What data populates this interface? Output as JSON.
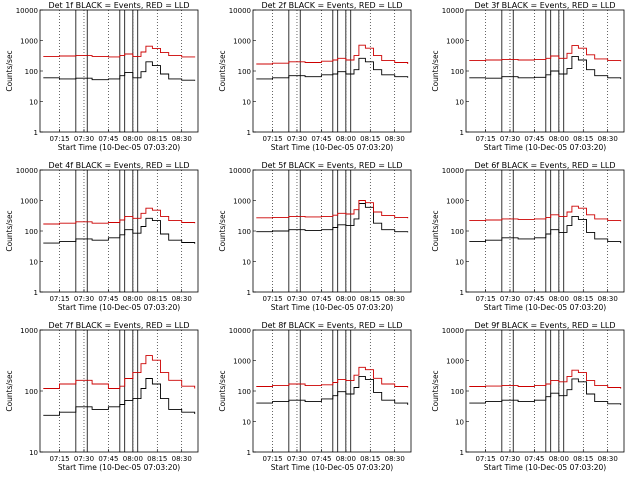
{
  "common": {
    "xlabel": "Start Time (10-Dec-05 07:03:20)",
    "ylabel": "Counts/sec",
    "x_ticks": [
      "07:15",
      "07:30",
      "07:45",
      "08:00",
      "08:15",
      "08:30"
    ],
    "y_ticks": [
      "1",
      "10",
      "100",
      "1000",
      "10000"
    ],
    "black_label": "BLACK = Events",
    "red_label": "RED = LLD"
  },
  "chart_data": [
    {
      "type": "line",
      "title": "Det 1f BLACK = Events, RED = LLD",
      "xlabel": "Start Time (10-Dec-05 07:03:20)",
      "ylabel": "Counts/sec",
      "ylog": true,
      "xlim": [
        "07:03",
        "08:40"
      ],
      "ylim": [
        1,
        10000
      ],
      "colors": {
        "events": "#000000",
        "lld": "#cc0000"
      },
      "vlines_solid": [
        "07:25",
        "07:32",
        "07:52",
        "07:55",
        "08:00",
        "08:03"
      ],
      "vlines_dotted": [
        "07:15",
        "07:30",
        "07:45",
        "08:00",
        "08:15",
        "08:30"
      ],
      "series": [
        {
          "name": "BLACK = Events",
          "color": "#000000",
          "x": [
            "07:05",
            "07:15",
            "07:25",
            "07:35",
            "07:45",
            "07:52",
            "07:55",
            "08:00",
            "08:05",
            "08:08",
            "08:12",
            "08:17",
            "08:22",
            "08:30",
            "08:38"
          ],
          "y": [
            60,
            55,
            58,
            52,
            55,
            70,
            90,
            60,
            95,
            200,
            150,
            80,
            55,
            50,
            48
          ]
        },
        {
          "name": "RED = LLD",
          "color": "#cc0000",
          "x": [
            "07:05",
            "07:15",
            "07:25",
            "07:35",
            "07:45",
            "07:52",
            "07:55",
            "08:00",
            "08:05",
            "08:08",
            "08:12",
            "08:17",
            "08:22",
            "08:30",
            "08:38"
          ],
          "y": [
            300,
            310,
            320,
            300,
            290,
            320,
            360,
            300,
            420,
            650,
            550,
            400,
            320,
            290,
            280
          ]
        }
      ]
    },
    {
      "type": "line",
      "title": "Det 2f BLACK = Events, RED = LLD",
      "xlabel": "Start Time (10-Dec-05 07:03:20)",
      "ylabel": "Counts/sec",
      "ylog": true,
      "xlim": [
        "07:03",
        "08:40"
      ],
      "ylim": [
        1,
        10000
      ],
      "colors": {
        "events": "#000000",
        "lld": "#cc0000"
      },
      "vlines_solid": [
        "07:25",
        "07:32",
        "07:52",
        "07:55",
        "08:00",
        "08:03"
      ],
      "vlines_dotted": [
        "07:15",
        "07:30",
        "07:45",
        "08:00",
        "08:15",
        "08:30"
      ],
      "series": [
        {
          "name": "BLACK = Events",
          "color": "#000000",
          "x": [
            "07:05",
            "07:15",
            "07:25",
            "07:35",
            "07:45",
            "07:52",
            "07:55",
            "08:00",
            "08:05",
            "08:08",
            "08:12",
            "08:17",
            "08:22",
            "08:30",
            "08:38"
          ],
          "y": [
            55,
            60,
            70,
            65,
            75,
            80,
            95,
            80,
            110,
            260,
            200,
            110,
            75,
            65,
            60
          ]
        },
        {
          "name": "RED = LLD",
          "color": "#cc0000",
          "x": [
            "07:05",
            "07:15",
            "07:25",
            "07:35",
            "07:45",
            "07:52",
            "07:55",
            "08:00",
            "08:05",
            "08:08",
            "08:12",
            "08:17",
            "08:22",
            "08:30",
            "08:38"
          ],
          "y": [
            170,
            180,
            200,
            190,
            210,
            230,
            260,
            230,
            320,
            700,
            560,
            320,
            220,
            190,
            170
          ]
        }
      ]
    },
    {
      "type": "line",
      "title": "Det 3f BLACK = Events, RED = LLD",
      "xlabel": "Start Time (10-Dec-05 07:03:20)",
      "ylabel": "Counts/sec",
      "ylog": true,
      "xlim": [
        "07:03",
        "08:40"
      ],
      "ylim": [
        1,
        10000
      ],
      "colors": {
        "events": "#000000",
        "lld": "#cc0000"
      },
      "vlines_solid": [
        "07:25",
        "07:32",
        "07:52",
        "07:55",
        "08:00",
        "08:03"
      ],
      "vlines_dotted": [
        "07:15",
        "07:30",
        "07:45",
        "08:00",
        "08:15",
        "08:30"
      ],
      "series": [
        {
          "name": "BLACK = Events",
          "color": "#000000",
          "x": [
            "07:05",
            "07:15",
            "07:25",
            "07:35",
            "07:45",
            "07:52",
            "07:55",
            "08:00",
            "08:05",
            "08:08",
            "08:12",
            "08:17",
            "08:22",
            "08:30",
            "08:38"
          ],
          "y": [
            60,
            58,
            65,
            60,
            62,
            75,
            100,
            80,
            120,
            300,
            230,
            110,
            70,
            60,
            55
          ]
        },
        {
          "name": "RED = LLD",
          "color": "#cc0000",
          "x": [
            "07:05",
            "07:15",
            "07:25",
            "07:35",
            "07:45",
            "07:52",
            "07:55",
            "08:00",
            "08:05",
            "08:08",
            "08:12",
            "08:17",
            "08:22",
            "08:30",
            "08:38"
          ],
          "y": [
            220,
            230,
            240,
            230,
            240,
            260,
            310,
            260,
            380,
            680,
            560,
            340,
            250,
            220,
            210
          ]
        }
      ]
    },
    {
      "type": "line",
      "title": "Det 4f BLACK = Events, RED = LLD",
      "xlabel": "Start Time (10-Dec-05 07:03:20)",
      "ylabel": "Counts/sec",
      "ylog": true,
      "xlim": [
        "07:03",
        "08:40"
      ],
      "ylim": [
        1,
        10000
      ],
      "colors": {
        "events": "#000000",
        "lld": "#cc0000"
      },
      "vlines_solid": [
        "07:25",
        "07:32",
        "07:52",
        "07:55",
        "08:00",
        "08:03"
      ],
      "vlines_dotted": [
        "07:15",
        "07:30",
        "07:45",
        "08:00",
        "08:15",
        "08:30"
      ],
      "series": [
        {
          "name": "BLACK = Events",
          "color": "#000000",
          "x": [
            "07:05",
            "07:15",
            "07:25",
            "07:35",
            "07:45",
            "07:52",
            "07:55",
            "08:00",
            "08:05",
            "08:08",
            "08:12",
            "08:17",
            "08:22",
            "08:30",
            "08:38"
          ],
          "y": [
            40,
            45,
            55,
            50,
            60,
            75,
            110,
            85,
            140,
            260,
            220,
            80,
            50,
            42,
            38
          ]
        },
        {
          "name": "RED = LLD",
          "color": "#cc0000",
          "x": [
            "07:05",
            "07:15",
            "07:25",
            "07:35",
            "07:45",
            "07:52",
            "07:55",
            "08:00",
            "08:05",
            "08:08",
            "08:12",
            "08:17",
            "08:22",
            "08:30",
            "08:38"
          ],
          "y": [
            170,
            180,
            200,
            180,
            190,
            230,
            300,
            260,
            380,
            560,
            480,
            300,
            220,
            190,
            180
          ]
        }
      ]
    },
    {
      "type": "line",
      "title": "Det 5f BLACK = Events, RED = LLD",
      "xlabel": "Start Time (10-Dec-05 07:03:20)",
      "ylabel": "Counts/sec",
      "ylog": true,
      "xlim": [
        "07:03",
        "08:40"
      ],
      "ylim": [
        1,
        10000
      ],
      "colors": {
        "events": "#000000",
        "lld": "#cc0000"
      },
      "vlines_solid": [
        "07:25",
        "07:32",
        "07:52",
        "07:55",
        "08:00",
        "08:03"
      ],
      "vlines_dotted": [
        "07:15",
        "07:30",
        "07:45",
        "08:00",
        "08:15",
        "08:30"
      ],
      "series": [
        {
          "name": "BLACK = Events",
          "color": "#000000",
          "x": [
            "07:05",
            "07:15",
            "07:25",
            "07:35",
            "07:45",
            "07:52",
            "07:55",
            "08:00",
            "08:05",
            "08:08",
            "08:12",
            "08:17",
            "08:22",
            "08:30",
            "08:38"
          ],
          "y": [
            95,
            100,
            110,
            105,
            110,
            130,
            160,
            150,
            250,
            800,
            600,
            180,
            110,
            95,
            90
          ]
        },
        {
          "name": "RED = LLD",
          "color": "#cc0000",
          "x": [
            "07:05",
            "07:15",
            "07:25",
            "07:35",
            "07:45",
            "07:52",
            "07:55",
            "08:00",
            "08:05",
            "08:08",
            "08:12",
            "08:17",
            "08:22",
            "08:30",
            "08:38"
          ],
          "y": [
            270,
            280,
            300,
            290,
            300,
            330,
            380,
            360,
            500,
            1000,
            850,
            420,
            320,
            280,
            260
          ]
        }
      ]
    },
    {
      "type": "line",
      "title": "Det 6f BLACK = Events, RED = LLD",
      "xlabel": "Start Time (10-Dec-05 07:03:20)",
      "ylabel": "Counts/sec",
      "ylog": true,
      "xlim": [
        "07:03",
        "08:40"
      ],
      "ylim": [
        1,
        10000
      ],
      "colors": {
        "events": "#000000",
        "lld": "#cc0000"
      },
      "vlines_solid": [
        "07:25",
        "07:32",
        "07:52",
        "07:55",
        "08:00",
        "08:03"
      ],
      "vlines_dotted": [
        "07:15",
        "07:30",
        "07:45",
        "08:00",
        "08:15",
        "08:30"
      ],
      "series": [
        {
          "name": "BLACK = Events",
          "color": "#000000",
          "x": [
            "07:05",
            "07:15",
            "07:25",
            "07:35",
            "07:45",
            "07:52",
            "07:55",
            "08:00",
            "08:05",
            "08:08",
            "08:12",
            "08:17",
            "08:22",
            "08:30",
            "08:38"
          ],
          "y": [
            45,
            50,
            60,
            55,
            60,
            80,
            110,
            90,
            150,
            300,
            240,
            90,
            55,
            45,
            40
          ]
        },
        {
          "name": "RED = LLD",
          "color": "#cc0000",
          "x": [
            "07:05",
            "07:15",
            "07:25",
            "07:35",
            "07:45",
            "07:52",
            "07:55",
            "08:00",
            "08:05",
            "08:08",
            "08:12",
            "08:17",
            "08:22",
            "08:30",
            "08:38"
          ],
          "y": [
            220,
            230,
            250,
            240,
            250,
            280,
            340,
            300,
            420,
            650,
            560,
            340,
            250,
            220,
            210
          ]
        }
      ]
    },
    {
      "type": "line",
      "title": "Det 7f BLACK = Events, RED = LLD",
      "xlabel": "Start Time (10-Dec-05 07:03:20)",
      "ylabel": "Counts/sec",
      "ylog": true,
      "xlim": [
        "07:03",
        "08:40"
      ],
      "ylim": [
        10,
        1000
      ],
      "colors": {
        "events": "#000000",
        "lld": "#cc0000"
      },
      "vlines_solid": [
        "07:25",
        "07:32",
        "07:52",
        "07:55",
        "08:00",
        "08:03"
      ],
      "vlines_dotted": [
        "07:15",
        "07:30",
        "07:45",
        "08:00",
        "08:15",
        "08:30"
      ],
      "series": [
        {
          "name": "BLACK = Events",
          "color": "#000000",
          "x": [
            "07:05",
            "07:15",
            "07:25",
            "07:35",
            "07:45",
            "07:52",
            "07:55",
            "08:00",
            "08:05",
            "08:08",
            "08:12",
            "08:17",
            "08:22",
            "08:30",
            "08:38"
          ],
          "y": [
            40,
            45,
            55,
            50,
            55,
            60,
            70,
            75,
            110,
            160,
            130,
            75,
            50,
            45,
            42
          ]
        },
        {
          "name": "RED = LLD",
          "color": "#cc0000",
          "x": [
            "07:05",
            "07:15",
            "07:25",
            "07:35",
            "07:45",
            "07:52",
            "07:55",
            "08:00",
            "08:05",
            "08:08",
            "08:12",
            "08:17",
            "08:22",
            "08:30",
            "08:38"
          ],
          "y": [
            110,
            130,
            150,
            130,
            110,
            120,
            160,
            200,
            280,
            380,
            320,
            200,
            150,
            120,
            110
          ]
        }
      ]
    },
    {
      "type": "line",
      "title": "Det 8f BLACK = Events, RED = LLD",
      "xlabel": "Start Time (10-Dec-05 07:03:20)",
      "ylabel": "Counts/sec",
      "ylog": true,
      "xlim": [
        "07:03",
        "08:40"
      ],
      "ylim": [
        1,
        10000
      ],
      "colors": {
        "events": "#000000",
        "lld": "#cc0000"
      },
      "vlines_solid": [
        "07:25",
        "07:32",
        "07:52",
        "07:55",
        "08:00",
        "08:03"
      ],
      "vlines_dotted": [
        "07:15",
        "07:30",
        "07:45",
        "08:00",
        "08:15",
        "08:30"
      ],
      "series": [
        {
          "name": "BLACK = Events",
          "color": "#000000",
          "x": [
            "07:05",
            "07:15",
            "07:25",
            "07:35",
            "07:45",
            "07:52",
            "07:55",
            "08:00",
            "08:05",
            "08:08",
            "08:12",
            "08:17",
            "08:22",
            "08:30",
            "08:38"
          ],
          "y": [
            40,
            45,
            50,
            45,
            55,
            70,
            95,
            80,
            130,
            300,
            240,
            90,
            50,
            40,
            35
          ]
        },
        {
          "name": "RED = LLD",
          "color": "#cc0000",
          "x": [
            "07:05",
            "07:15",
            "07:25",
            "07:35",
            "07:45",
            "07:52",
            "07:55",
            "08:00",
            "08:05",
            "08:08",
            "08:12",
            "08:17",
            "08:22",
            "08:30",
            "08:38"
          ],
          "y": [
            140,
            150,
            170,
            150,
            160,
            190,
            240,
            220,
            330,
            600,
            500,
            260,
            170,
            140,
            130
          ]
        }
      ]
    },
    {
      "type": "line",
      "title": "Det 9f BLACK = Events, RED = LLD",
      "xlabel": "Start Time (10-Dec-05 07:03:20)",
      "ylabel": "Counts/sec",
      "ylog": true,
      "xlim": [
        "07:03",
        "08:40"
      ],
      "ylim": [
        1,
        10000
      ],
      "colors": {
        "events": "#000000",
        "lld": "#cc0000"
      },
      "vlines_solid": [
        "07:25",
        "07:32",
        "07:52",
        "07:55",
        "08:00",
        "08:03"
      ],
      "vlines_dotted": [
        "07:15",
        "07:30",
        "07:45",
        "08:00",
        "08:15",
        "08:30"
      ],
      "series": [
        {
          "name": "BLACK = Events",
          "color": "#000000",
          "x": [
            "07:05",
            "07:15",
            "07:25",
            "07:35",
            "07:45",
            "07:52",
            "07:55",
            "08:00",
            "08:05",
            "08:08",
            "08:12",
            "08:17",
            "08:22",
            "08:30",
            "08:38"
          ],
          "y": [
            40,
            45,
            50,
            45,
            50,
            65,
            85,
            70,
            110,
            250,
            200,
            80,
            45,
            38,
            35
          ]
        },
        {
          "name": "RED = LLD",
          "color": "#cc0000",
          "x": [
            "07:05",
            "07:15",
            "07:25",
            "07:35",
            "07:45",
            "07:52",
            "07:55",
            "08:00",
            "08:05",
            "08:08",
            "08:12",
            "08:17",
            "08:22",
            "08:30",
            "08:38"
          ],
          "y": [
            140,
            145,
            150,
            140,
            150,
            170,
            220,
            200,
            300,
            480,
            400,
            220,
            150,
            130,
            120
          ]
        }
      ]
    }
  ]
}
